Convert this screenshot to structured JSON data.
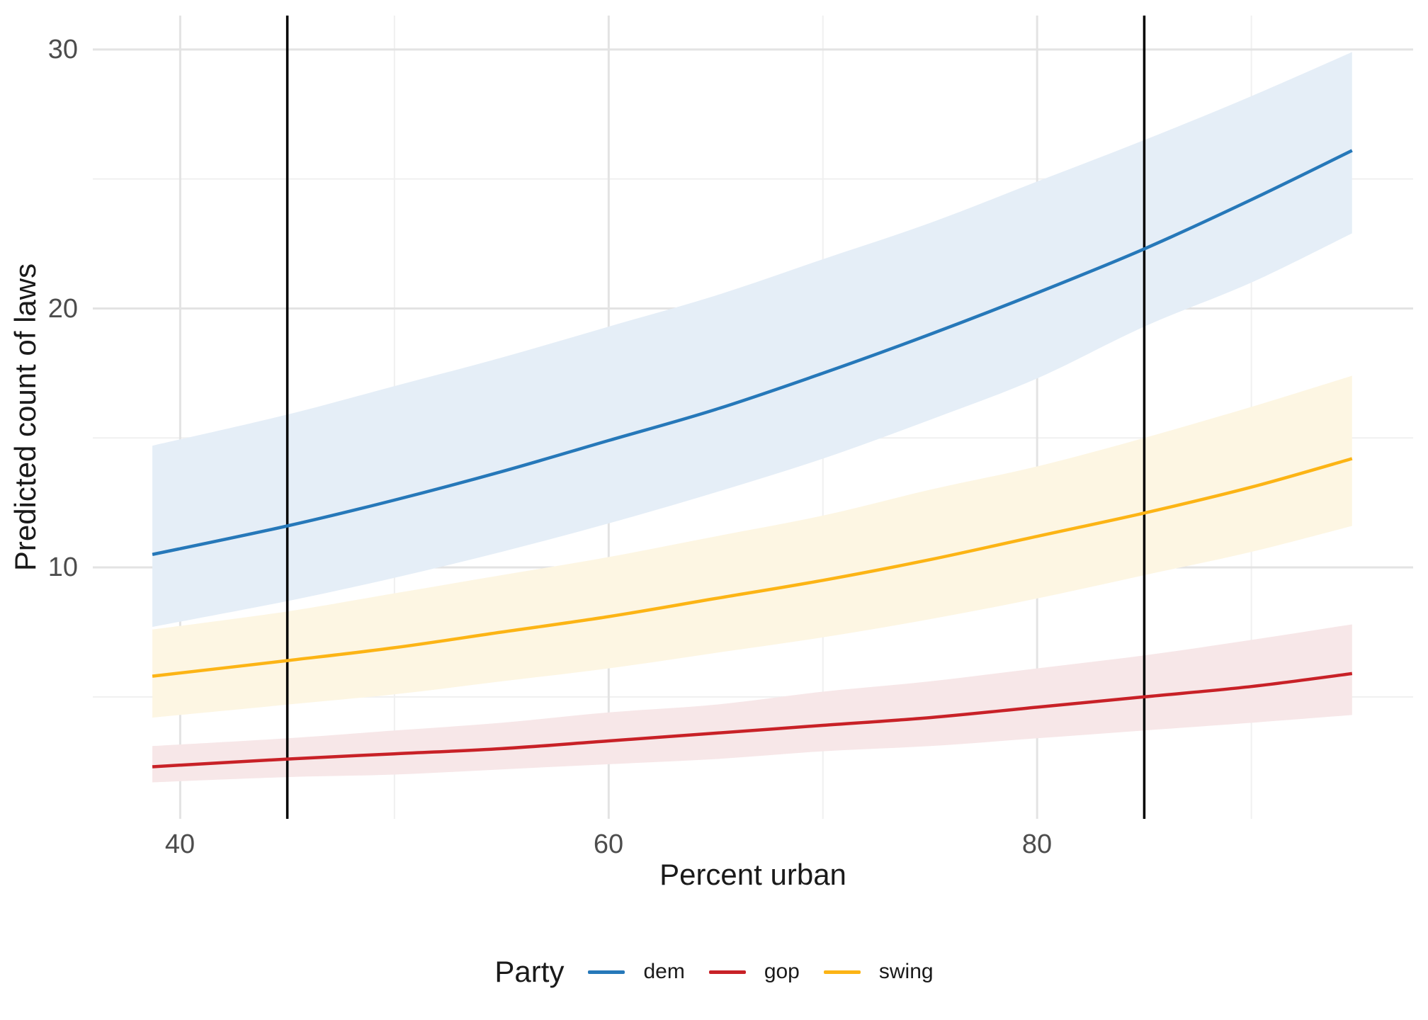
{
  "chart_data": {
    "type": "line",
    "title": "",
    "xlabel": "Percent urban",
    "ylabel": "Predicted count of laws",
    "legend_title": "Party",
    "legend_position": "bottom",
    "grid": true,
    "xlim": [
      35.92,
      97.55
    ],
    "ylim": [
      0.29,
      31.31
    ],
    "x_ticks": [
      40,
      60,
      80
    ],
    "x_minor_ticks": [
      50,
      70,
      90
    ],
    "y_ticks": [
      10,
      20,
      30
    ],
    "y_minor_ticks": [
      5,
      15,
      25
    ],
    "vlines": {
      "x": [
        45,
        85
      ],
      "color": "#000000"
    },
    "x": [
      38.7,
      45,
      50,
      55,
      60,
      65,
      70,
      75,
      80,
      85,
      90,
      94.7
    ],
    "series": [
      {
        "name": "dem",
        "color": "#2678B9",
        "fill": "#E5EEF7",
        "values": [
          10.5,
          11.6,
          12.6,
          13.7,
          14.9,
          16.1,
          17.5,
          19.0,
          20.6,
          22.3,
          24.2,
          26.1
        ],
        "lower": [
          7.7,
          8.7,
          9.6,
          10.6,
          11.7,
          12.9,
          14.2,
          15.7,
          17.3,
          19.3,
          21.0,
          22.9
        ],
        "upper": [
          14.7,
          15.9,
          17.0,
          18.1,
          19.3,
          20.5,
          21.9,
          23.3,
          24.9,
          26.5,
          28.2,
          29.9
        ]
      },
      {
        "name": "gop",
        "color": "#C82127",
        "fill": "#F7E7E8",
        "values": [
          2.3,
          2.6,
          2.8,
          3.0,
          3.3,
          3.6,
          3.9,
          4.2,
          4.6,
          5.0,
          5.4,
          5.9
        ],
        "lower": [
          1.7,
          1.9,
          2.0,
          2.2,
          2.4,
          2.6,
          2.9,
          3.1,
          3.4,
          3.7,
          4.0,
          4.3
        ],
        "upper": [
          3.1,
          3.4,
          3.7,
          4.0,
          4.4,
          4.7,
          5.2,
          5.6,
          6.1,
          6.6,
          7.2,
          7.8
        ]
      },
      {
        "name": "swing",
        "color": "#FCB415",
        "fill": "#FDF6E3",
        "values": [
          5.8,
          6.4,
          6.9,
          7.5,
          8.1,
          8.8,
          9.5,
          10.3,
          11.2,
          12.1,
          13.1,
          14.2
        ],
        "lower": [
          4.2,
          4.7,
          5.1,
          5.6,
          6.1,
          6.7,
          7.3,
          8.0,
          8.8,
          9.7,
          10.6,
          11.6
        ],
        "upper": [
          7.6,
          8.3,
          9.0,
          9.7,
          10.4,
          11.2,
          12.0,
          13.0,
          13.9,
          15.0,
          16.2,
          17.4
        ]
      }
    ],
    "theme": {
      "background": "#FFFFFF",
      "grid_major": "#E3E3E3",
      "grid_minor": "#F0F0F0",
      "tick_label_color": "#4D4D4D",
      "axis_title_color": "#1A1A1A",
      "vline_color": "#000000"
    }
  }
}
